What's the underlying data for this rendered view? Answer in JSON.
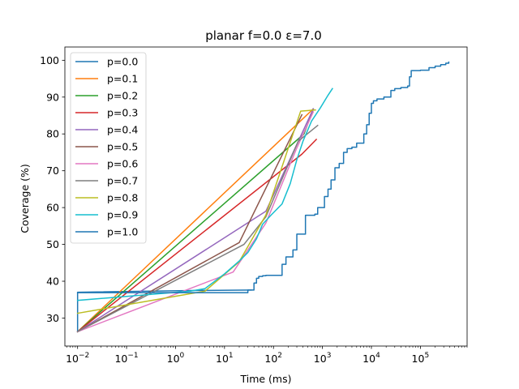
{
  "chart_data": {
    "type": "line",
    "title": "planar f=0.0 ε=7.0",
    "xlabel": "Time (ms)",
    "ylabel": "Coverage (%)",
    "xscale": "log",
    "xlim": [
      0.0055,
      900000
    ],
    "ylim": [
      22.4,
      103.6
    ],
    "xticks": [
      {
        "value": 0.01,
        "base": "10",
        "exp": "−2"
      },
      {
        "value": 0.1,
        "base": "10",
        "exp": "−1"
      },
      {
        "value": 1,
        "base": "10",
        "exp": "0"
      },
      {
        "value": 10,
        "base": "10",
        "exp": "1"
      },
      {
        "value": 100,
        "base": "10",
        "exp": "2"
      },
      {
        "value": 1000,
        "base": "10",
        "exp": "3"
      },
      {
        "value": 10000,
        "base": "10",
        "exp": "4"
      },
      {
        "value": 100000,
        "base": "10",
        "exp": "5"
      }
    ],
    "yticks": [
      30,
      40,
      50,
      60,
      70,
      80,
      90,
      100
    ],
    "legend_position": "upper-left",
    "grid": false,
    "series": [
      {
        "name": "p=0.0",
        "color": "#1f77b4",
        "step": false,
        "points": [
          [
            0.01,
            26.3
          ],
          [
            0.01,
            37.0
          ],
          [
            3,
            37.5
          ],
          [
            35,
            37.6
          ]
        ]
      },
      {
        "name": "p=0.1",
        "color": "#ff7f0e",
        "step": false,
        "points": [
          [
            0.01,
            26.3
          ],
          [
            650,
            86.8
          ]
        ]
      },
      {
        "name": "p=0.2",
        "color": "#2ca02c",
        "step": false,
        "points": [
          [
            0.01,
            26.3
          ],
          [
            420,
            80.0
          ],
          [
            650,
            86.8
          ]
        ]
      },
      {
        "name": "p=0.3",
        "color": "#d62728",
        "step": false,
        "points": [
          [
            0.01,
            26.3
          ],
          [
            380,
            74.5
          ],
          [
            750,
            78.5
          ]
        ]
      },
      {
        "name": "p=0.4",
        "color": "#9467bd",
        "step": false,
        "points": [
          [
            0.01,
            26.3
          ],
          [
            70,
            59.0
          ],
          [
            650,
            86.8
          ]
        ]
      },
      {
        "name": "p=0.5",
        "color": "#8c564b",
        "step": false,
        "points": [
          [
            0.01,
            26.3
          ],
          [
            20,
            50.5
          ],
          [
            380,
            85.2
          ]
        ]
      },
      {
        "name": "p=0.6",
        "color": "#e377c2",
        "step": false,
        "points": [
          [
            0.01,
            26.3
          ],
          [
            15,
            42.5
          ],
          [
            70,
            55.8
          ],
          [
            300,
            76.2
          ],
          [
            650,
            86.0
          ]
        ]
      },
      {
        "name": "p=0.7",
        "color": "#7f7f7f",
        "step": false,
        "points": [
          [
            0.01,
            26.3
          ],
          [
            25,
            50.0
          ],
          [
            70,
            57.5
          ],
          [
            320,
            78.0
          ],
          [
            800,
            82.3
          ]
        ]
      },
      {
        "name": "p=0.8",
        "color": "#bcbd22",
        "step": false,
        "points": [
          [
            0.01,
            31.3
          ],
          [
            4,
            37.3
          ],
          [
            20,
            45.3
          ],
          [
            70,
            58.0
          ],
          [
            360,
            86.2
          ],
          [
            720,
            86.5
          ]
        ]
      },
      {
        "name": "p=0.9",
        "color": "#17becf",
        "step": false,
        "points": [
          [
            0.01,
            34.8
          ],
          [
            2,
            37.3
          ],
          [
            4,
            38.0
          ],
          [
            10,
            42.0
          ],
          [
            20,
            45.5
          ],
          [
            30,
            47.8
          ],
          [
            45,
            51.5
          ],
          [
            60,
            55.5
          ],
          [
            90,
            58.0
          ],
          [
            150,
            61.0
          ],
          [
            220,
            66.5
          ],
          [
            300,
            73.0
          ],
          [
            400,
            78.0
          ],
          [
            600,
            83.5
          ],
          [
            900,
            87.0
          ],
          [
            1300,
            90.5
          ],
          [
            1600,
            92.3
          ]
        ]
      },
      {
        "name": "p=1.0",
        "color": "#1f77b4",
        "step": true,
        "points": [
          [
            0.01,
            36.9
          ],
          [
            30,
            37.6
          ],
          [
            40,
            39.5
          ],
          [
            45,
            40.8
          ],
          [
            50,
            41.3
          ],
          [
            60,
            41.5
          ],
          [
            70,
            41.6
          ],
          [
            150,
            44.6
          ],
          [
            180,
            46.6
          ],
          [
            250,
            48.5
          ],
          [
            300,
            52.8
          ],
          [
            450,
            57.9
          ],
          [
            700,
            58.2
          ],
          [
            800,
            60.0
          ],
          [
            1100,
            63.0
          ],
          [
            1300,
            65.0
          ],
          [
            1500,
            67.5
          ],
          [
            1800,
            70.8
          ],
          [
            2200,
            72.0
          ],
          [
            2700,
            75.0
          ],
          [
            3200,
            76.0
          ],
          [
            4000,
            76.4
          ],
          [
            5000,
            77.5
          ],
          [
            7000,
            80.0
          ],
          [
            8000,
            82.5
          ],
          [
            9000,
            85.6
          ],
          [
            10000,
            88.3
          ],
          [
            11000,
            89.0
          ],
          [
            13000,
            89.5
          ],
          [
            18000,
            90.0
          ],
          [
            25000,
            91.8
          ],
          [
            30000,
            92.3
          ],
          [
            40000,
            92.6
          ],
          [
            55000,
            93.0
          ],
          [
            60000,
            95.5
          ],
          [
            65000,
            97.2
          ],
          [
            100000,
            97.3
          ],
          [
            150000,
            98.0
          ],
          [
            200000,
            98.4
          ],
          [
            260000,
            98.8
          ],
          [
            330000,
            99.2
          ],
          [
            380000,
            99.5
          ]
        ]
      }
    ]
  }
}
